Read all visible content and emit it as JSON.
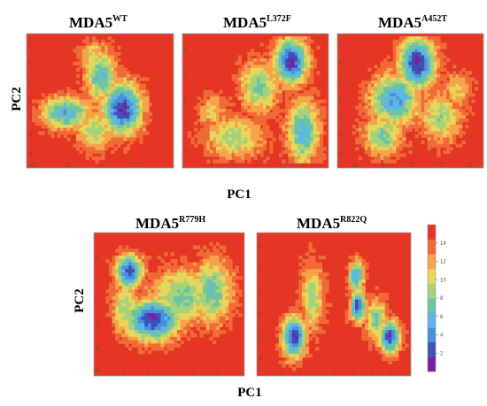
{
  "figure": {
    "x_axis_label": "PC1",
    "y_axis_label": "PC2"
  },
  "colors": {
    "scale": [
      "#7b1fa2",
      "#3f51b5",
      "#4a90d9",
      "#5bb7e6",
      "#6cc4a4",
      "#a6d27b",
      "#e7d65a",
      "#f6a44b",
      "#f06a36",
      "#e53524"
    ],
    "background": "#e53524",
    "frame": "#9e9e9e"
  },
  "colorbar": {
    "ticks": [
      "14",
      "12",
      "10",
      "8",
      "6",
      "4",
      "2"
    ],
    "range": [
      0,
      16
    ]
  },
  "chart_data": [
    {
      "type": "heatmap",
      "title": "MDA5",
      "title_superscript": "WT",
      "xlim": [
        -10,
        10
      ],
      "ylim": [
        -7,
        7
      ],
      "xticks": [
        "-10",
        "-5",
        "0",
        "5"
      ],
      "yticks": [
        "6",
        "4",
        "2",
        "0",
        "-2",
        "-4",
        "-6"
      ],
      "basins": [
        {
          "x": 3,
          "y": -1.0,
          "depth": 14,
          "sx": 2.0,
          "sy": 2.0
        },
        {
          "x": -5,
          "y": -1.5,
          "depth": 10,
          "sx": 2.6,
          "sy": 1.3
        },
        {
          "x": 0,
          "y": 2.5,
          "depth": 9,
          "sx": 1.6,
          "sy": 2.2
        },
        {
          "x": -1,
          "y": -3.5,
          "depth": 7,
          "sx": 1.8,
          "sy": 1.6
        },
        {
          "x": -1,
          "y": 4.5,
          "depth": 6,
          "sx": 1.5,
          "sy": 1.5
        }
      ]
    },
    {
      "type": "heatmap",
      "title": "MDA5",
      "title_superscript": "L372F",
      "xlim": [
        -6,
        6
      ],
      "ylim": [
        -5,
        5
      ],
      "xticks": [
        "-4",
        "-2",
        "0",
        "2",
        "4"
      ],
      "yticks": [
        "4",
        "2",
        "0",
        "-2",
        "-4"
      ],
      "basins": [
        {
          "x": 3,
          "y": 3,
          "depth": 14,
          "sx": 1.0,
          "sy": 1.3
        },
        {
          "x": 4,
          "y": -2.5,
          "depth": 10,
          "sx": 1.0,
          "sy": 1.8
        },
        {
          "x": 0.2,
          "y": 1,
          "depth": 8,
          "sx": 1.2,
          "sy": 1.5
        },
        {
          "x": -2,
          "y": -3,
          "depth": 7,
          "sx": 1.8,
          "sy": 1.2
        },
        {
          "x": -3.8,
          "y": -1,
          "depth": 5,
          "sx": 0.9,
          "sy": 1.0
        }
      ]
    },
    {
      "type": "heatmap",
      "title": "MDA5",
      "title_superscript": "A452T",
      "xlim": [
        -12,
        12
      ],
      "ylim": [
        -7,
        7
      ],
      "xticks": [
        "-10",
        "-5",
        "0",
        "5",
        "10"
      ],
      "yticks": [
        "6",
        "4",
        "2",
        "0",
        "-2",
        "-4",
        "-6"
      ],
      "basins": [
        {
          "x": 1,
          "y": 4,
          "depth": 14,
          "sx": 2.2,
          "sy": 2.0
        },
        {
          "x": -3,
          "y": 0,
          "depth": 11,
          "sx": 3.0,
          "sy": 2.0
        },
        {
          "x": -5,
          "y": -4,
          "depth": 8,
          "sx": 2.5,
          "sy": 1.6
        },
        {
          "x": 5,
          "y": -2,
          "depth": 7,
          "sx": 2.6,
          "sy": 2.0
        },
        {
          "x": 8,
          "y": 1,
          "depth": 5,
          "sx": 1.8,
          "sy": 1.5
        }
      ]
    },
    {
      "type": "heatmap",
      "title": "MDA5",
      "title_superscript": "R779H",
      "xlim": [
        -6,
        6
      ],
      "ylim": [
        -6,
        6
      ],
      "xticks": [
        "-4",
        "-2",
        "0",
        "2",
        "4"
      ],
      "yticks": [
        "4",
        "2",
        "0",
        "-2",
        "-4",
        "-6"
      ],
      "basins": [
        {
          "x": -1.5,
          "y": -1.5,
          "depth": 14,
          "sx": 1.6,
          "sy": 1.3
        },
        {
          "x": -3.5,
          "y": 2.8,
          "depth": 13,
          "sx": 0.8,
          "sy": 1.1
        },
        {
          "x": 3.5,
          "y": 1.0,
          "depth": 9,
          "sx": 1.2,
          "sy": 2.0
        },
        {
          "x": 1.0,
          "y": 0.5,
          "depth": 8,
          "sx": 2.0,
          "sy": 1.8
        },
        {
          "x": -3.8,
          "y": -0.5,
          "depth": 7,
          "sx": 0.8,
          "sy": 1.8
        }
      ]
    },
    {
      "type": "heatmap",
      "title": "MDA5",
      "title_superscript": "R822Q",
      "xlim": [
        -8,
        8
      ],
      "ylim": [
        -5,
        7
      ],
      "xticks": [
        "-6",
        "-4",
        "-2",
        "0",
        "2",
        "4",
        "6"
      ],
      "yticks": [
        "6",
        "4",
        "2",
        "0",
        "-2",
        "-4"
      ],
      "basins": [
        {
          "x": 6,
          "y": -2,
          "depth": 14,
          "sx": 0.8,
          "sy": 1.0
        },
        {
          "x": -4.5,
          "y": -2,
          "depth": 14,
          "sx": 0.9,
          "sy": 1.3
        },
        {
          "x": 2.5,
          "y": 0.7,
          "depth": 13,
          "sx": 0.6,
          "sy": 1.0
        },
        {
          "x": 2.3,
          "y": 3.3,
          "depth": 11,
          "sx": 0.6,
          "sy": 1.0
        },
        {
          "x": -2.5,
          "y": 1.5,
          "depth": 7,
          "sx": 0.9,
          "sy": 2.2
        },
        {
          "x": 4.5,
          "y": -0.5,
          "depth": 8,
          "sx": 0.8,
          "sy": 1.4
        }
      ]
    }
  ]
}
